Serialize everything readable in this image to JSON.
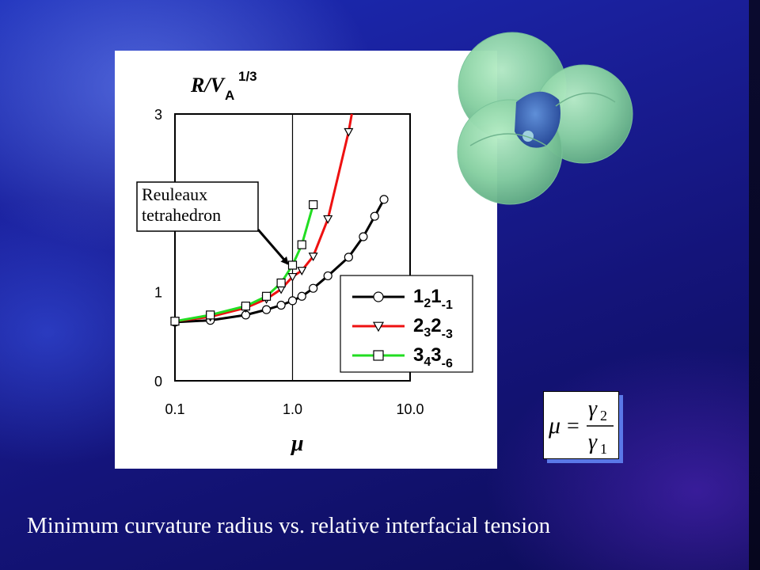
{
  "caption": "Minimum curvature radius vs. relative interfacial tension",
  "formula": {
    "lhs": "μ",
    "num_symbol": "γ",
    "num_sub": "2",
    "den_symbol": "γ",
    "den_sub": "1"
  },
  "illustration": {
    "icon": "reuleaux-tetrahedron-bubble-cluster-icon"
  },
  "chart_data": {
    "type": "line",
    "title": "",
    "ylabel_main": "R/V",
    "ylabel_sub": "A",
    "ylabel_sup": "1/3",
    "xlabel": "μ",
    "x_scale": "log",
    "xlim": [
      0.1,
      10.0
    ],
    "ylim": [
      0,
      3
    ],
    "x_ticks": [
      "0.1",
      "1.0",
      "10.0"
    ],
    "y_ticks": [
      {
        "value": 0,
        "label": "0"
      },
      {
        "value": 1,
        "label": "1"
      },
      {
        "value": 3,
        "label": "3"
      }
    ],
    "reference_line_x": 1.0,
    "annotation": {
      "lines": [
        "Reuleaux",
        "tetrahedron"
      ],
      "points_to": {
        "x": 1.0,
        "y": 1.28
      }
    },
    "legend_position": "bottom-right",
    "series": [
      {
        "label_main": "1",
        "label_sub1": "2",
        "label_mid": "1",
        "label_sub2": "-1",
        "color": "#000000",
        "marker": "circle",
        "x": [
          0.1,
          0.2,
          0.4,
          0.6,
          0.8,
          1.0,
          1.2,
          1.5,
          2.0,
          3.0,
          4.0,
          5.0,
          6.0
        ],
        "y": [
          0.66,
          0.68,
          0.74,
          0.8,
          0.85,
          0.9,
          0.95,
          1.04,
          1.18,
          1.39,
          1.62,
          1.85,
          2.04
        ]
      },
      {
        "label_main": "2",
        "label_sub1": "3",
        "label_mid": "2",
        "label_sub2": "-3",
        "color": "#ee1111",
        "marker": "triangle-down",
        "x": [
          0.1,
          0.2,
          0.4,
          0.6,
          0.8,
          1.0,
          1.2,
          1.5,
          2.0,
          3.0
        ],
        "y": [
          0.67,
          0.72,
          0.82,
          0.92,
          1.03,
          1.17,
          1.24,
          1.4,
          1.82,
          2.8
        ]
      },
      {
        "label_main": "3",
        "label_sub1": "4",
        "label_mid": "3",
        "label_sub2": "-6",
        "color": "#22dd22",
        "marker": "square",
        "x": [
          0.1,
          0.2,
          0.4,
          0.6,
          0.8,
          1.0,
          1.2,
          1.5
        ],
        "y": [
          0.67,
          0.74,
          0.84,
          0.95,
          1.1,
          1.3,
          1.53,
          1.98
        ]
      }
    ]
  }
}
